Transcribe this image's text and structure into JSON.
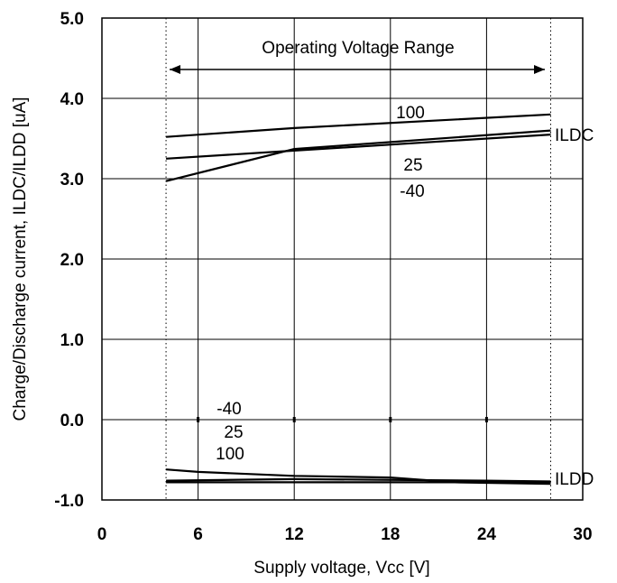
{
  "chart_data": {
    "type": "line",
    "title": "",
    "xlabel": "Supply voltage, Vcc [V]",
    "ylabel": "Charge/Discharge current, ILDC/ILDD [uA]",
    "xlim": [
      0,
      30
    ],
    "ylim": [
      -1.0,
      5.0
    ],
    "xticks": [
      "0",
      "6",
      "12",
      "18",
      "24",
      "30"
    ],
    "yticks": [
      "5.0",
      "4.0",
      "3.0",
      "2.0",
      "1.0",
      "0.0",
      "-1.0"
    ],
    "grid": true,
    "operating_range": {
      "label": "Operating Voltage Range",
      "from": 4,
      "to": 28
    },
    "series": [
      {
        "name": "100",
        "group": "ILDC",
        "x": [
          4,
          12,
          28
        ],
        "y": [
          3.52,
          3.63,
          3.8
        ]
      },
      {
        "name": "25",
        "group": "ILDC",
        "x": [
          4,
          12,
          28
        ],
        "y": [
          3.25,
          3.35,
          3.55
        ]
      },
      {
        "name": "-40",
        "group": "ILDC",
        "x": [
          4,
          12,
          28
        ],
        "y": [
          2.97,
          3.37,
          3.6
        ]
      },
      {
        "name": "100",
        "group": "ILDD",
        "x": [
          4,
          6,
          12,
          18,
          22,
          28
        ],
        "y": [
          -0.62,
          -0.65,
          -0.7,
          -0.72,
          -0.78,
          -0.8
        ]
      },
      {
        "name": "25",
        "group": "ILDD",
        "x": [
          4,
          12,
          24,
          28
        ],
        "y": [
          -0.76,
          -0.74,
          -0.76,
          -0.77
        ]
      },
      {
        "name": "-40",
        "group": "ILDD",
        "x": [
          4,
          12,
          24,
          28
        ],
        "y": [
          -0.78,
          -0.78,
          -0.78,
          -0.78
        ]
      }
    ],
    "annotations": {
      "ildc_label": "ILDC",
      "ildd_label": "ILDD",
      "ildc_100": "100",
      "ildc_25": "25",
      "ildc_m40": "-40",
      "ildd_m40": "-40",
      "ildd_25": "25",
      "ildd_100": "100"
    }
  }
}
